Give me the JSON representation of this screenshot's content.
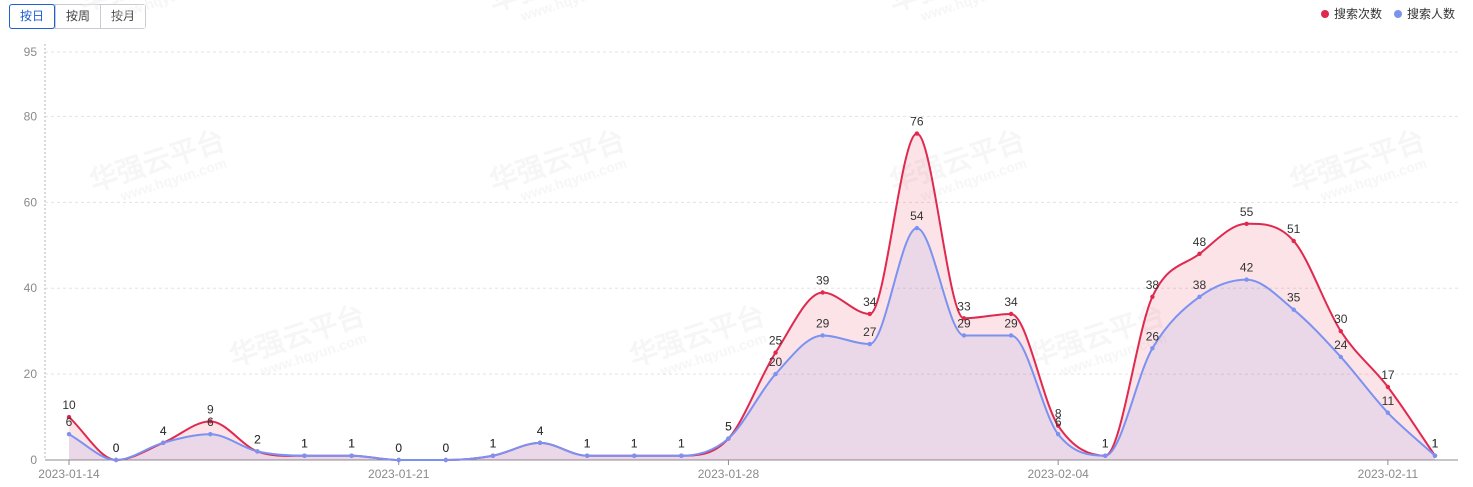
{
  "toolbar": {
    "buttons": [
      {
        "label": "按日",
        "active": true
      },
      {
        "label": "按周",
        "active": false
      },
      {
        "label": "按月",
        "active": false
      }
    ]
  },
  "legend": [
    {
      "label": "搜索次数",
      "color": "#e0294f"
    },
    {
      "label": "搜索人数",
      "color": "#7b92f0"
    }
  ],
  "watermark": "华强云平台 www.hqyun.com",
  "chart_data": {
    "type": "area",
    "x_tick_labels": [
      "2023-01-14",
      "2023-01-21",
      "2023-01-28",
      "2023-02-04",
      "2023-02-11"
    ],
    "x_tick_indices": [
      0,
      7,
      14,
      21,
      28
    ],
    "y_ticks": [
      0,
      20,
      40,
      60,
      80,
      95
    ],
    "ylim": [
      0,
      95
    ],
    "grid": true,
    "legend_position": "top-right",
    "series": [
      {
        "name": "搜索次数",
        "color": "#e0294f",
        "values": [
          10,
          0,
          4,
          9,
          2,
          1,
          1,
          0,
          0,
          1,
          4,
          1,
          1,
          1,
          5,
          25,
          39,
          34,
          76,
          33,
          34,
          8,
          1,
          38,
          48,
          55,
          51,
          30,
          17,
          1
        ]
      },
      {
        "name": "搜索人数",
        "color": "#7b92f0",
        "values": [
          6,
          0,
          4,
          6,
          2,
          1,
          1,
          0,
          0,
          1,
          4,
          1,
          1,
          1,
          5,
          20,
          29,
          27,
          54,
          29,
          29,
          6,
          1,
          26,
          38,
          42,
          35,
          24,
          11,
          1
        ]
      }
    ]
  }
}
